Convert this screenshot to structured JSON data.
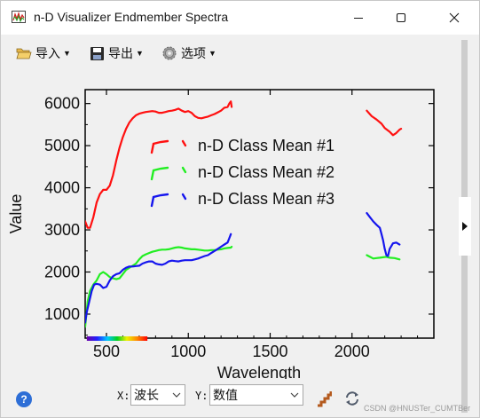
{
  "window": {
    "title": "n-D Visualizer Endmember Spectra",
    "controls": {
      "minimize": "minimize-icon",
      "maximize": "maximize-icon",
      "close": "close-icon"
    }
  },
  "toolbar": {
    "import_label": "导入",
    "export_label": "导出",
    "options_label": "选项"
  },
  "bottom": {
    "x_label": "X:",
    "x_value": "波长",
    "y_label": "Y:",
    "y_value": "数值"
  },
  "watermark": "CSDN @HNUSTer_CUMTBer",
  "chart_data": {
    "type": "line",
    "xlabel": "Wavelength",
    "ylabel": "Value",
    "xlim": [
      370,
      2500
    ],
    "ylim": [
      430,
      6330
    ],
    "x_ticks": [
      500,
      1000,
      1500,
      2000
    ],
    "y_ticks": [
      1000,
      2000,
      3000,
      4000,
      5000,
      6000
    ],
    "legend_position": "upper-left",
    "series": [
      {
        "name": "n-D Class Mean #1",
        "color": "#ff1010",
        "segments": [
          [
            [
              370,
              3200
            ],
            [
              385,
              3050
            ],
            [
              400,
              3050
            ],
            [
              420,
              3300
            ],
            [
              440,
              3650
            ],
            [
              460,
              3850
            ],
            [
              480,
              3950
            ],
            [
              500,
              3950
            ],
            [
              520,
              4050
            ],
            [
              540,
              4300
            ],
            [
              560,
              4650
            ],
            [
              580,
              4950
            ],
            [
              600,
              5200
            ],
            [
              620,
              5400
            ],
            [
              640,
              5550
            ],
            [
              660,
              5650
            ],
            [
              680,
              5720
            ],
            [
              700,
              5760
            ],
            [
              720,
              5780
            ],
            [
              740,
              5800
            ],
            [
              760,
              5810
            ],
            [
              780,
              5820
            ],
            [
              800,
              5810
            ],
            [
              820,
              5780
            ],
            [
              840,
              5780
            ],
            [
              860,
              5800
            ],
            [
              880,
              5820
            ],
            [
              900,
              5830
            ],
            [
              920,
              5850
            ],
            [
              940,
              5880
            ],
            [
              960,
              5830
            ],
            [
              980,
              5800
            ],
            [
              1000,
              5820
            ],
            [
              1020,
              5780
            ],
            [
              1040,
              5700
            ],
            [
              1060,
              5660
            ],
            [
              1080,
              5650
            ],
            [
              1100,
              5670
            ],
            [
              1120,
              5690
            ],
            [
              1140,
              5720
            ],
            [
              1160,
              5750
            ],
            [
              1180,
              5790
            ],
            [
              1200,
              5830
            ],
            [
              1220,
              5900
            ],
            [
              1240,
              5920
            ],
            [
              1250,
              6000
            ],
            [
              1260,
              6050
            ],
            [
              1265,
              5920
            ]
          ],
          [
            [
              2090,
              5830
            ],
            [
              2120,
              5700
            ],
            [
              2150,
              5620
            ],
            [
              2180,
              5520
            ],
            [
              2200,
              5420
            ],
            [
              2230,
              5330
            ],
            [
              2250,
              5250
            ],
            [
              2270,
              5300
            ],
            [
              2290,
              5380
            ],
            [
              2300,
              5400
            ]
          ]
        ]
      },
      {
        "name": "n-D Class Mean #2",
        "color": "#22ee22",
        "segments": [
          [
            [
              370,
              700
            ],
            [
              375,
              900
            ],
            [
              385,
              1300
            ],
            [
              400,
              1550
            ],
            [
              420,
              1700
            ],
            [
              440,
              1800
            ],
            [
              460,
              1950
            ],
            [
              480,
              2000
            ],
            [
              500,
              1950
            ],
            [
              520,
              1880
            ],
            [
              540,
              1850
            ],
            [
              560,
              1830
            ],
            [
              580,
              1850
            ],
            [
              600,
              1950
            ],
            [
              620,
              2050
            ],
            [
              640,
              2100
            ],
            [
              660,
              2150
            ],
            [
              680,
              2200
            ],
            [
              700,
              2300
            ],
            [
              720,
              2380
            ],
            [
              740,
              2420
            ],
            [
              760,
              2450
            ],
            [
              780,
              2480
            ],
            [
              800,
              2500
            ],
            [
              820,
              2520
            ],
            [
              840,
              2530
            ],
            [
              860,
              2530
            ],
            [
              880,
              2540
            ],
            [
              900,
              2560
            ],
            [
              920,
              2580
            ],
            [
              940,
              2590
            ],
            [
              960,
              2580
            ],
            [
              980,
              2560
            ],
            [
              1000,
              2550
            ],
            [
              1020,
              2540
            ],
            [
              1040,
              2540
            ],
            [
              1060,
              2530
            ],
            [
              1080,
              2520
            ],
            [
              1100,
              2510
            ],
            [
              1120,
              2510
            ],
            [
              1140,
              2520
            ],
            [
              1160,
              2520
            ],
            [
              1180,
              2530
            ],
            [
              1200,
              2540
            ],
            [
              1220,
              2560
            ],
            [
              1240,
              2570
            ],
            [
              1260,
              2580
            ],
            [
              1265,
              2600
            ]
          ],
          [
            [
              2090,
              2400
            ],
            [
              2110,
              2360
            ],
            [
              2130,
              2320
            ],
            [
              2150,
              2330
            ],
            [
              2170,
              2340
            ],
            [
              2190,
              2350
            ],
            [
              2210,
              2360
            ],
            [
              2230,
              2340
            ],
            [
              2260,
              2330
            ],
            [
              2290,
              2300
            ]
          ]
        ]
      },
      {
        "name": "n-D Class Mean #3",
        "color": "#1515ee",
        "segments": [
          [
            [
              370,
              800
            ],
            [
              380,
              1050
            ],
            [
              395,
              1300
            ],
            [
              410,
              1550
            ],
            [
              425,
              1700
            ],
            [
              440,
              1720
            ],
            [
              460,
              1700
            ],
            [
              480,
              1620
            ],
            [
              500,
              1650
            ],
            [
              520,
              1800
            ],
            [
              540,
              1900
            ],
            [
              560,
              1950
            ],
            [
              580,
              1970
            ],
            [
              600,
              2050
            ],
            [
              620,
              2100
            ],
            [
              640,
              2130
            ],
            [
              660,
              2130
            ],
            [
              680,
              2140
            ],
            [
              700,
              2150
            ],
            [
              720,
              2200
            ],
            [
              740,
              2230
            ],
            [
              760,
              2250
            ],
            [
              780,
              2250
            ],
            [
              800,
              2200
            ],
            [
              820,
              2180
            ],
            [
              840,
              2170
            ],
            [
              860,
              2200
            ],
            [
              880,
              2250
            ],
            [
              900,
              2270
            ],
            [
              920,
              2260
            ],
            [
              940,
              2250
            ],
            [
              960,
              2270
            ],
            [
              980,
              2280
            ],
            [
              1000,
              2280
            ],
            [
              1020,
              2280
            ],
            [
              1040,
              2300
            ],
            [
              1060,
              2320
            ],
            [
              1080,
              2350
            ],
            [
              1100,
              2380
            ],
            [
              1120,
              2400
            ],
            [
              1140,
              2450
            ],
            [
              1160,
              2500
            ],
            [
              1180,
              2550
            ],
            [
              1200,
              2600
            ],
            [
              1220,
              2650
            ],
            [
              1240,
              2700
            ],
            [
              1250,
              2800
            ],
            [
              1260,
              2900
            ]
          ],
          [
            [
              2090,
              3400
            ],
            [
              2110,
              3300
            ],
            [
              2130,
              3200
            ],
            [
              2150,
              3120
            ],
            [
              2170,
              3050
            ],
            [
              2180,
              2900
            ],
            [
              2190,
              2750
            ],
            [
              2200,
              2550
            ],
            [
              2210,
              2400
            ],
            [
              2220,
              2380
            ],
            [
              2230,
              2550
            ],
            [
              2250,
              2680
            ],
            [
              2270,
              2700
            ],
            [
              2290,
              2650
            ]
          ]
        ]
      }
    ]
  }
}
